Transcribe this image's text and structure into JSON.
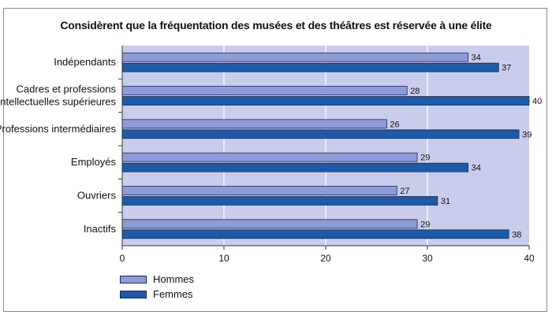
{
  "chart_data": {
    "type": "bar",
    "orientation": "horizontal",
    "title": "Considèrent que la fréquentation des musées et des théâtres est réservée à une élite",
    "categories": [
      [
        "Indépendants"
      ],
      [
        "Cadres et professions",
        "intellectuelles supérieures"
      ],
      [
        "Professions intermédiaires"
      ],
      [
        "Employés"
      ],
      [
        "Ouvriers"
      ],
      [
        "Inactifs"
      ]
    ],
    "series": [
      {
        "name": "Hommes",
        "values": [
          34,
          28,
          26,
          29,
          27,
          29
        ],
        "color": "#8e9bd9"
      },
      {
        "name": "Femmes",
        "values": [
          37,
          40,
          39,
          34,
          31,
          38
        ],
        "color": "#1d5aa8"
      }
    ],
    "xlim": [
      0,
      40
    ],
    "xticks": [
      0,
      10,
      20,
      30,
      40
    ],
    "grid": true,
    "plot_background": "#c9cdeb",
    "legend_position": "bottom-left",
    "xlabel": "",
    "ylabel": ""
  }
}
